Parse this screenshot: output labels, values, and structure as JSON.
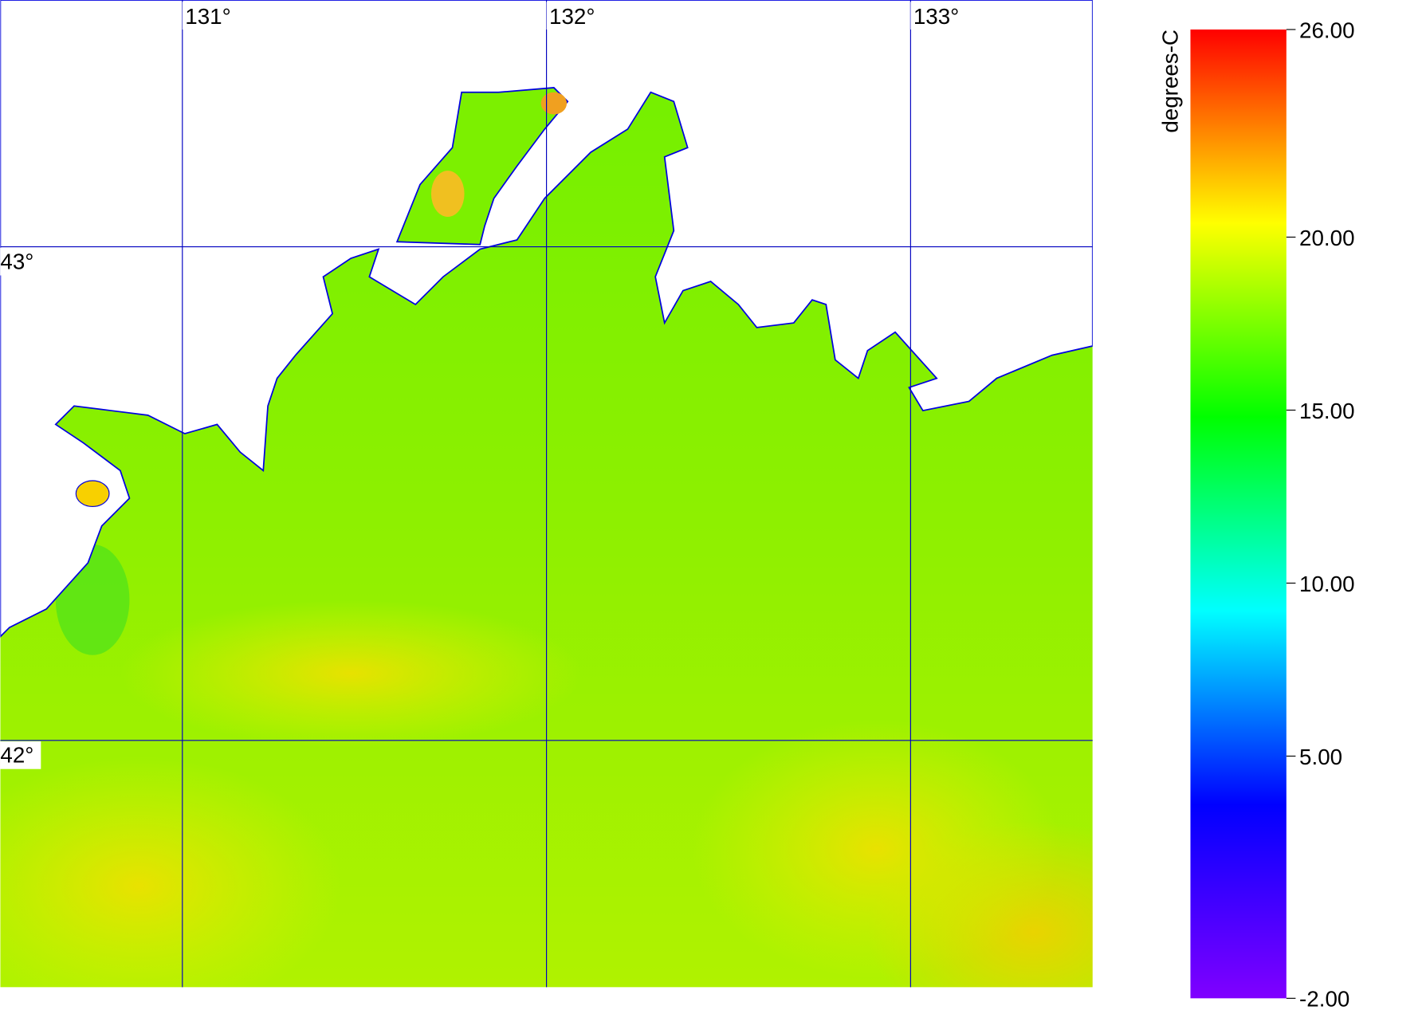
{
  "map": {
    "xlim": [
      130.5,
      133.5
    ],
    "ylim": [
      41.5,
      43.5
    ],
    "xticks": [
      {
        "value": 131,
        "label": "131°"
      },
      {
        "value": 132,
        "label": "132°"
      },
      {
        "value": 133,
        "label": "133°"
      }
    ],
    "yticks": [
      {
        "value": 42,
        "label": "42°"
      },
      {
        "value": 43,
        "label": "43°"
      }
    ],
    "grid_color": "#0000c0",
    "colorbar": {
      "label": "degrees-C",
      "lim": [
        -2,
        26
      ],
      "ticks": [
        {
          "value": -2,
          "label": "-2.00"
        },
        {
          "value": 5,
          "label": "5.00"
        },
        {
          "value": 10,
          "label": "10.00"
        },
        {
          "value": 15,
          "label": "15.00"
        },
        {
          "value": 20,
          "label": "20.00"
        },
        {
          "value": 26,
          "label": "26.00"
        }
      ],
      "colors": [
        "#8000ff",
        "#0000ff",
        "#00ffff",
        "#00ff00",
        "#ffff00",
        "#ff0000"
      ]
    }
  }
}
